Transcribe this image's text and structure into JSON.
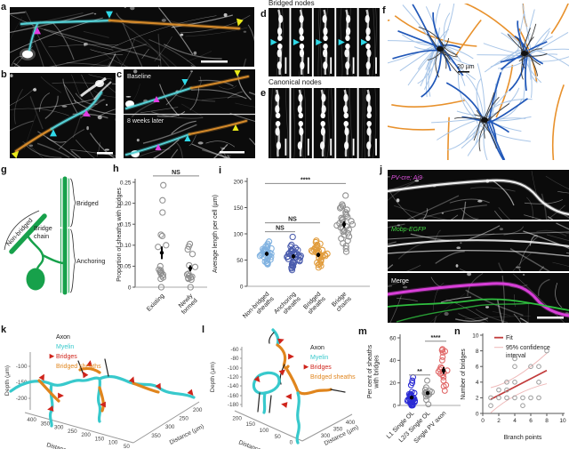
{
  "panels": {
    "a": {
      "label": "a"
    },
    "b": {
      "label": "b"
    },
    "c": {
      "label": "c",
      "timepoints": [
        "Baseline",
        "8 weeks later"
      ]
    },
    "d": {
      "label": "d",
      "title": "Bridged nodes"
    },
    "e": {
      "label": "e",
      "title": "Canonical nodes"
    },
    "f": {
      "label": "f",
      "scale_bar_label": "20 µm"
    },
    "g": {
      "label": "g",
      "color": "#17a14b",
      "annotations": {
        "non_bridged": "Non-bridged",
        "bridge_chain_lines": [
          "Bridge",
          "chain"
        ],
        "bridged": "Bridged",
        "anchoring": "Anchoring"
      }
    },
    "h": {
      "label": "h"
    },
    "i": {
      "label": "i"
    },
    "j": {
      "label": "j",
      "channels": [
        {
          "text": "PV-cre; Ai9",
          "color": "#e354e3"
        },
        {
          "text": "Mobp-EGFP",
          "color": "#46d946"
        },
        {
          "text": "Merge",
          "color": "#ffffff"
        }
      ]
    },
    "k": {
      "label": "k"
    },
    "l": {
      "label": "l"
    },
    "m": {
      "label": "m"
    },
    "n": {
      "label": "n"
    }
  },
  "markers": {
    "node_arrow": "#2fd9e8",
    "branch_arrow": "#e23ce2",
    "end_arrow": "#e8e81a",
    "scale_bar": "#ffffff",
    "bridge_arrow": "#cf241b"
  },
  "chart_data": [
    {
      "id": "h",
      "type": "scatter",
      "ylabel": "Proportion of sheaths with bridges",
      "ylim": [
        0,
        0.25
      ],
      "yticks": [
        "0",
        "0.05",
        "0.10",
        "0.15",
        "0.20",
        "0.25"
      ],
      "ytick_vals": [
        0,
        0.05,
        0.1,
        0.15,
        0.2,
        0.25
      ],
      "categories": [
        [
          "Existing"
        ],
        [
          "Newly",
          "formed"
        ]
      ],
      "sig": [
        {
          "from": 0,
          "to": 1,
          "label": "NS",
          "y": 0.265
        }
      ],
      "series": [
        {
          "name": "Existing",
          "color": "#8f8f8f",
          "values": [
            0.243,
            0.207,
            0.178,
            0.125,
            0.122,
            0.1,
            0.096,
            0.05,
            0.042,
            0.04,
            0.037,
            0.035,
            0.033,
            0.03,
            0.027,
            0.023,
            0.02,
            0
          ],
          "mean": 0.082,
          "err": 0.015
        },
        {
          "name": "Newly formed",
          "color": "#8f8f8f",
          "values": [
            0.103,
            0.097,
            0.09,
            0.079,
            0.052,
            0.048,
            0.032,
            0.03,
            0.027,
            0.025,
            0.023,
            0.022,
            0.02,
            0.018,
            0
          ],
          "mean": 0.045,
          "err": 0.007
        }
      ]
    },
    {
      "id": "i",
      "type": "scatter",
      "ylabel": "Average length per cell (µm)",
      "ylim": [
        0,
        200
      ],
      "yticks": [
        "0",
        "50",
        "100",
        "150",
        "200"
      ],
      "ytick_vals": [
        0,
        50,
        100,
        150,
        200
      ],
      "categories": [
        [
          "Non-bridged",
          "sheaths"
        ],
        [
          "Anchoring",
          "sheaths"
        ],
        [
          "Bridged",
          "sheaths"
        ],
        [
          "Bridge",
          "chains"
        ]
      ],
      "sig": [
        {
          "from": 0,
          "to": 1,
          "label": "NS",
          "y": 104
        },
        {
          "from": 0,
          "to": 2,
          "label": "NS",
          "y": 121
        },
        {
          "from": 0,
          "to": 3,
          "label": "****",
          "y": 196
        }
      ],
      "series": [
        {
          "name": "Non-bridged sheaths",
          "color": "#7fb1e0",
          "values": [
            85,
            81,
            78,
            76,
            74,
            72,
            71,
            70,
            69,
            68,
            67,
            66,
            65,
            64,
            63,
            62,
            62,
            61,
            60,
            59,
            58,
            57,
            56,
            55,
            53,
            51,
            49,
            47,
            45,
            44,
            43,
            42
          ],
          "mean": 62,
          "err": 4
        },
        {
          "name": "Anchoring sheaths",
          "color": "#4a5cad",
          "values": [
            94,
            79,
            76,
            73,
            71,
            69,
            68,
            67,
            66,
            65,
            64,
            63,
            62,
            61,
            60,
            59,
            58,
            57,
            56,
            55,
            54,
            52,
            51,
            50,
            48,
            47,
            46,
            45,
            44,
            42,
            40,
            38,
            36,
            34,
            31
          ],
          "mean": 57,
          "err": 4
        },
        {
          "name": "Bridged sheaths",
          "color": "#e19c3c",
          "values": [
            87,
            84,
            81,
            79,
            77,
            75,
            73,
            71,
            70,
            69,
            68,
            67,
            66,
            65,
            64,
            63,
            62,
            61,
            60,
            59,
            58,
            57,
            55,
            53,
            51,
            49,
            47,
            45,
            43,
            41,
            39,
            36
          ],
          "mean": 60,
          "err": 4
        },
        {
          "name": "Bridge chains",
          "color": "#8f8f8f",
          "values": [
            173,
            156,
            153,
            151,
            149,
            146,
            141,
            138,
            135,
            132,
            130,
            128,
            126,
            124,
            122,
            120,
            118,
            116,
            114,
            112,
            110,
            108,
            106,
            104,
            101,
            98,
            95,
            91,
            87,
            82,
            77,
            72,
            66
          ],
          "mean": 118,
          "err": 6
        }
      ]
    },
    {
      "id": "m",
      "type": "scatter",
      "ylabel_lines": [
        "Per cent of sheaths",
        "with bridges"
      ],
      "ylim": [
        0,
        60
      ],
      "yticks": [
        "0",
        "20",
        "40",
        "60"
      ],
      "ytick_vals": [
        0,
        20,
        40,
        60
      ],
      "categories": [
        [
          "L1 Single OL"
        ],
        [
          "L2/3 Single OL"
        ],
        [
          "Single PV axon"
        ]
      ],
      "sig": [
        {
          "from": 0,
          "to": 1,
          "label": "**",
          "y": 27
        },
        {
          "from": 1,
          "to": 2,
          "label": "****",
          "y": 57
        }
      ],
      "series": [
        {
          "name": "L1 Single OL",
          "color": "#2b2bd4",
          "values": [
            25,
            22,
            20,
            18,
            12,
            11,
            10,
            10,
            9,
            9,
            8,
            8,
            7,
            7,
            6,
            6,
            6,
            5,
            5,
            5,
            4,
            4,
            4,
            3,
            3,
            3,
            2,
            2,
            2,
            1,
            1,
            1,
            0,
            0,
            0
          ],
          "mean": 7,
          "err": 1.5
        },
        {
          "name": "L2/3 Single OL",
          "color": "#909090",
          "values": [
            22,
            16,
            14,
            13,
            12,
            12,
            11,
            11,
            10,
            10,
            9,
            8,
            5,
            1
          ],
          "mean": 11,
          "err": 1.5
        },
        {
          "name": "Single PV axon",
          "color": "#e06565",
          "values": [
            50,
            49,
            48,
            47,
            43,
            40,
            34,
            33,
            32,
            31,
            30,
            29,
            28,
            27,
            25,
            22,
            18,
            17,
            13
          ],
          "mean": 31,
          "err": 3
        }
      ]
    },
    {
      "id": "n",
      "type": "xy",
      "xlabel": "Branch points",
      "ylabel": "Number of bridges",
      "xlim": [
        0,
        10
      ],
      "ylim": [
        0,
        10
      ],
      "xticks": [
        0,
        2,
        4,
        6,
        8,
        10
      ],
      "yticks": [
        0,
        2,
        4,
        6,
        8,
        10
      ],
      "legend": [
        {
          "lines": [
            "Fit"
          ],
          "color": "#c23b3b"
        },
        {
          "lines": [
            "95% confidence",
            "interval"
          ],
          "color": "#efb9b9"
        }
      ],
      "point_color": "#9a9a9a",
      "points": [
        [
          1,
          1
        ],
        [
          1,
          2
        ],
        [
          2,
          2
        ],
        [
          2,
          3
        ],
        [
          3,
          2
        ],
        [
          3,
          3
        ],
        [
          3,
          4
        ],
        [
          4,
          2
        ],
        [
          4,
          4
        ],
        [
          4,
          6
        ],
        [
          4,
          7
        ],
        [
          5,
          1
        ],
        [
          5,
          2
        ],
        [
          6,
          2
        ],
        [
          6,
          6
        ],
        [
          7,
          2
        ],
        [
          7,
          4
        ],
        [
          7,
          6
        ],
        [
          8,
          8
        ]
      ],
      "fit": {
        "x1": 1,
        "y1": 1.8,
        "x2": 8,
        "y2": 5.5
      },
      "ci_upper": [
        [
          1,
          3.3
        ],
        [
          4,
          4.0
        ],
        [
          8,
          7.7
        ]
      ],
      "ci_lower": [
        [
          1,
          0.1
        ],
        [
          4,
          2.8
        ],
        [
          8,
          3.8
        ]
      ]
    },
    {
      "id": "k",
      "type": "trace3d",
      "legend": [
        {
          "label": "Axon",
          "color": "#1a1a1a"
        },
        {
          "label": "Myelin",
          "color": "#38c9cc"
        },
        {
          "label": "Bridges",
          "color": "#cf241b",
          "arrow": true
        },
        {
          "label": "Bridged sheaths",
          "color": "#e0851d"
        }
      ],
      "depth_label": "Depth (µm)",
      "depth_ticks": [
        "-100",
        "-150",
        "-200"
      ],
      "x_label": "Distance (µm)",
      "x_ticks": [
        "400",
        "350",
        "300",
        "250",
        "200",
        "150",
        "100",
        "50"
      ],
      "y_label": "Distance (µm)",
      "y_ticks": [
        "200",
        "250",
        "300",
        "350"
      ]
    },
    {
      "id": "l",
      "type": "trace3d",
      "legend": [
        {
          "label": "Axon",
          "color": "#1a1a1a"
        },
        {
          "label": "Myelin",
          "color": "#38c9cc"
        },
        {
          "label": "Bridges",
          "color": "#cf241b",
          "arrow": true
        },
        {
          "label": "Bridged sheaths",
          "color": "#e0851d"
        }
      ],
      "depth_label": "Depth (µm)",
      "depth_ticks": [
        "-60",
        "-80",
        "-100",
        "-120",
        "-140",
        "-160",
        "-180"
      ],
      "x_label": "Distance (µm)",
      "x_ticks": [
        "200",
        "150",
        "100",
        "50",
        "0"
      ],
      "y_label": "Distance (µm)",
      "y_ticks": [
        "300",
        "350",
        "400"
      ]
    }
  ]
}
